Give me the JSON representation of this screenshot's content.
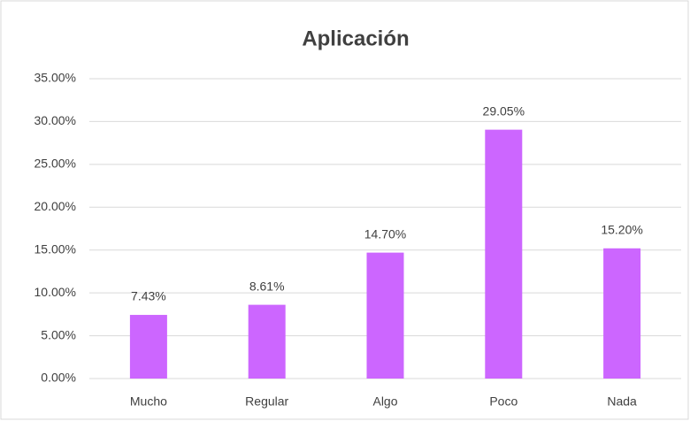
{
  "chart_data": {
    "type": "bar",
    "title": "Aplicación",
    "categories": [
      "Mucho",
      "Regular",
      "Algo",
      "Poco",
      "Nada"
    ],
    "values": [
      7.43,
      8.61,
      14.7,
      29.05,
      15.2
    ],
    "value_labels": [
      "7.43%",
      "8.61%",
      "14.70%",
      "29.05%",
      "15.20%"
    ],
    "color": "#cc66ff",
    "ylim": [
      0,
      35
    ],
    "yticks": [
      {
        "value": 0,
        "label": "0.00%"
      },
      {
        "value": 5,
        "label": "5.00%"
      },
      {
        "value": 10,
        "label": "10.00%"
      },
      {
        "value": 15,
        "label": "15.00%"
      },
      {
        "value": 20,
        "label": "20.00%"
      },
      {
        "value": 25,
        "label": "25.00%"
      },
      {
        "value": 30,
        "label": "30.00%"
      },
      {
        "value": 35,
        "label": "35.00%"
      }
    ],
    "grid": true
  }
}
